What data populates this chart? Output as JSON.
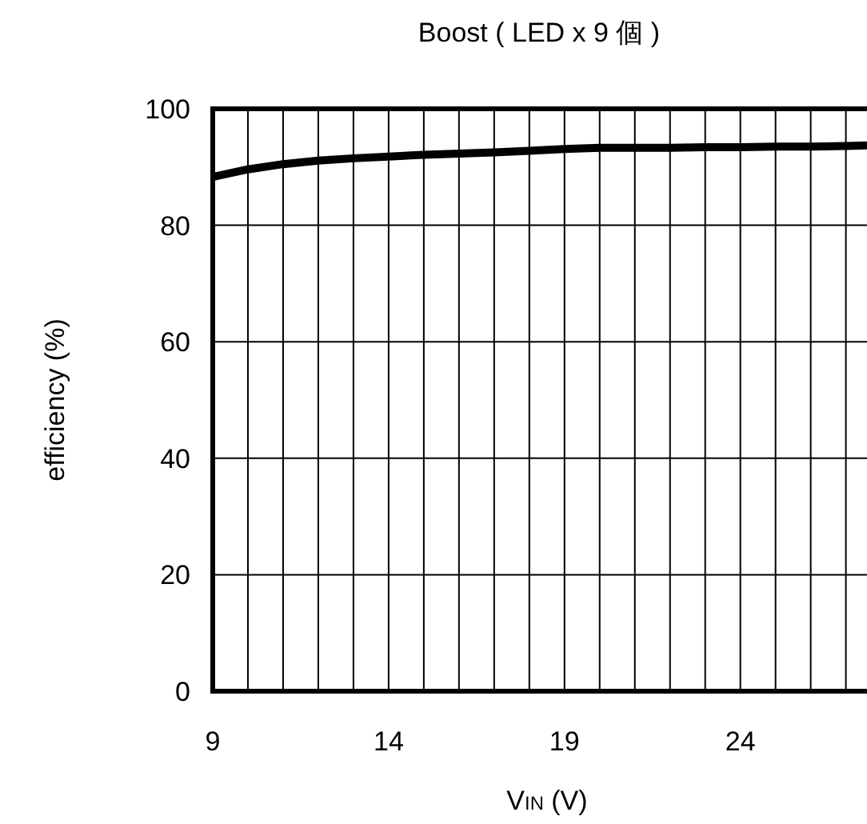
{
  "chart_data": {
    "type": "line",
    "title": "Boost ( LED x 9 個 )",
    "xlabel": "V$_{IN}$ (V)",
    "ylabel": "efficiency (%)",
    "x": [
      9,
      10,
      11,
      12,
      13,
      14,
      15,
      16,
      17,
      18,
      19,
      20,
      21,
      22,
      23,
      24,
      25,
      26,
      27,
      27.6
    ],
    "series": [
      {
        "color": "#000000",
        "values": [
          88.3,
          89.6,
          90.5,
          91.1,
          91.5,
          91.8,
          92.1,
          92.3,
          92.5,
          92.8,
          93.1,
          93.3,
          93.3,
          93.3,
          93.4,
          93.4,
          93.5,
          93.5,
          93.6,
          93.7
        ]
      }
    ],
    "xlim": [
      9,
      27.6
    ],
    "ylim": [
      0,
      100
    ],
    "xticks": [
      9,
      {
        "value": 10,
        "label": null
      },
      {
        "value": 11,
        "label": null
      },
      {
        "value": 12,
        "label": null
      },
      {
        "value": 13,
        "label": null
      },
      14,
      {
        "value": 15,
        "label": null
      },
      {
        "value": 16,
        "label": null
      },
      {
        "value": 17,
        "label": null
      },
      {
        "value": 18,
        "label": null
      },
      19,
      {
        "value": 20,
        "label": null
      },
      {
        "value": 21,
        "label": null
      },
      {
        "value": 22,
        "label": null
      },
      {
        "value": 23,
        "label": null
      },
      24,
      {
        "value": 25,
        "label": null
      },
      {
        "value": 26,
        "label": null
      },
      {
        "value": 27,
        "label": null
      }
    ],
    "yticks": [
      0,
      20,
      40,
      60,
      80,
      100
    ],
    "grid": true,
    "marker": "none",
    "line_style": "solid"
  }
}
